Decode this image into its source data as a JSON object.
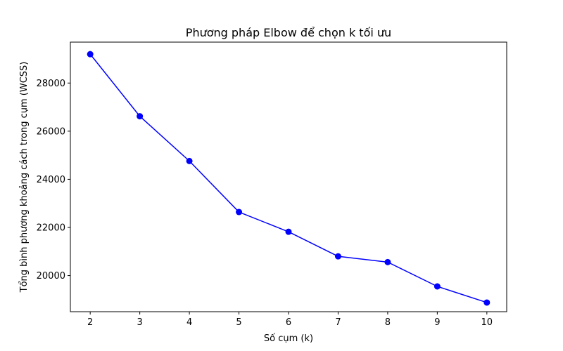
{
  "chart_data": {
    "type": "line",
    "title": "Phương pháp Elbow để chọn k tối ưu",
    "xlabel": "Số cụm (k)",
    "ylabel": "Tổng bình phương khoảng cách trong cụm (WCSS)",
    "x": [
      2,
      3,
      4,
      5,
      6,
      7,
      8,
      9,
      10
    ],
    "series": [
      {
        "values": [
          29200,
          26620,
          24760,
          22640,
          21820,
          20800,
          20560,
          19550,
          18880
        ],
        "color": "#0000ff",
        "marker": "circle"
      }
    ],
    "xlim": [
      1.6,
      10.4
    ],
    "ylim": [
      18500,
      29700
    ],
    "xticks": [
      2,
      3,
      4,
      5,
      6,
      7,
      8,
      9,
      10
    ],
    "yticks": [
      20000,
      22000,
      24000,
      26000,
      28000
    ],
    "xtick_labels": [
      "2",
      "3",
      "4",
      "5",
      "6",
      "7",
      "8",
      "9",
      "10"
    ],
    "ytick_labels": [
      "20000",
      "22000",
      "24000",
      "26000",
      "28000"
    ],
    "grid": false,
    "legend": "none"
  }
}
